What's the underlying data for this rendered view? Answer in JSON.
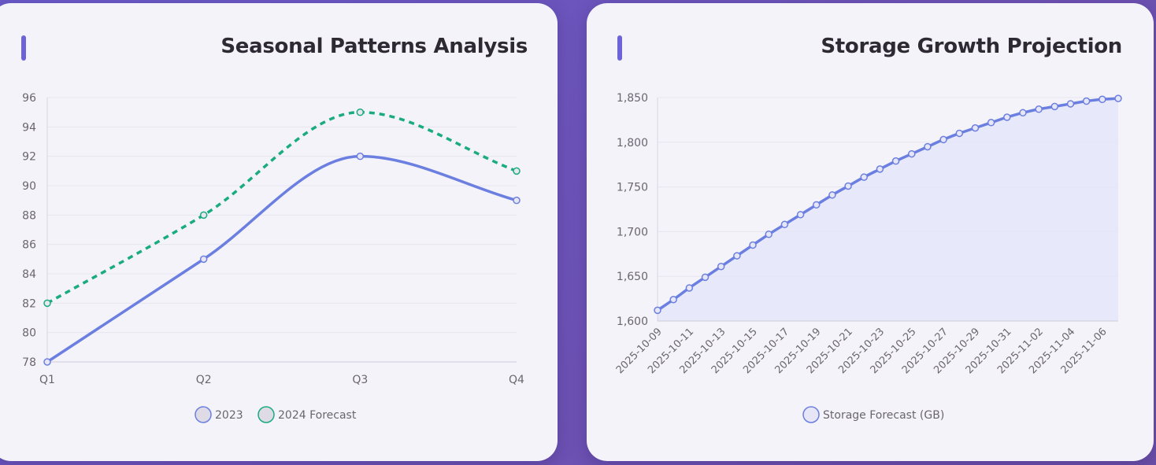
{
  "colors": {
    "series_2023": "#6b7fe0",
    "series_2024": "#1aab7e",
    "storage_line": "#6b7fe0",
    "storage_fill": "#e4e5f8",
    "grid": "#e6e4ee",
    "axis_text": "#6a6670",
    "accent_bar": "#6c63d8"
  },
  "charts": {
    "seasonal": {
      "title": "Seasonal Patterns Analysis"
    },
    "storage": {
      "title": "Storage Growth Projection"
    }
  },
  "chart_data": [
    {
      "type": "line",
      "title": "Seasonal Patterns Analysis",
      "categories": [
        "Q1",
        "Q2",
        "Q3",
        "Q4"
      ],
      "series": [
        {
          "name": "2023",
          "values": [
            78,
            85,
            92,
            89
          ],
          "style": "solid"
        },
        {
          "name": "2024 Forecast",
          "values": [
            82,
            88,
            95,
            91
          ],
          "style": "dashed"
        }
      ],
      "ylim": [
        78,
        96
      ],
      "yticks": [
        "78",
        "80",
        "82",
        "84",
        "86",
        "88",
        "90",
        "92",
        "94",
        "96"
      ],
      "grid": true,
      "legend": "bottom"
    },
    {
      "type": "area",
      "title": "Storage Growth Projection",
      "x": [
        "2025-10-09",
        "2025-10-10",
        "2025-10-11",
        "2025-10-12",
        "2025-10-13",
        "2025-10-14",
        "2025-10-15",
        "2025-10-16",
        "2025-10-17",
        "2025-10-18",
        "2025-10-19",
        "2025-10-20",
        "2025-10-21",
        "2025-10-22",
        "2025-10-23",
        "2025-10-24",
        "2025-10-25",
        "2025-10-26",
        "2025-10-27",
        "2025-10-28",
        "2025-10-29",
        "2025-10-30",
        "2025-10-31",
        "2025-11-01",
        "2025-11-02",
        "2025-11-03",
        "2025-11-04",
        "2025-11-05",
        "2025-11-06",
        "2025-11-07"
      ],
      "xtick_labels": [
        "2025-10-09",
        "2025-10-11",
        "2025-10-13",
        "2025-10-15",
        "2025-10-17",
        "2025-10-19",
        "2025-10-21",
        "2025-10-23",
        "2025-10-25",
        "2025-10-27",
        "2025-10-29",
        "2025-10-31",
        "2025-11-02",
        "2025-11-04",
        "2025-11-06"
      ],
      "series": [
        {
          "name": "Storage Forecast (GB)",
          "values": [
            1612,
            1624,
            1637,
            1649,
            1661,
            1673,
            1685,
            1697,
            1708,
            1719,
            1730,
            1741,
            1751,
            1761,
            1770,
            1779,
            1787,
            1795,
            1803,
            1810,
            1816,
            1822,
            1828,
            1833,
            1837,
            1840,
            1843,
            1846,
            1848,
            1849
          ]
        }
      ],
      "ylim": [
        1600,
        1850
      ],
      "yticks": [
        "1,600",
        "1,650",
        "1,700",
        "1,750",
        "1,800",
        "1,850"
      ],
      "grid": true,
      "legend": "bottom"
    }
  ]
}
